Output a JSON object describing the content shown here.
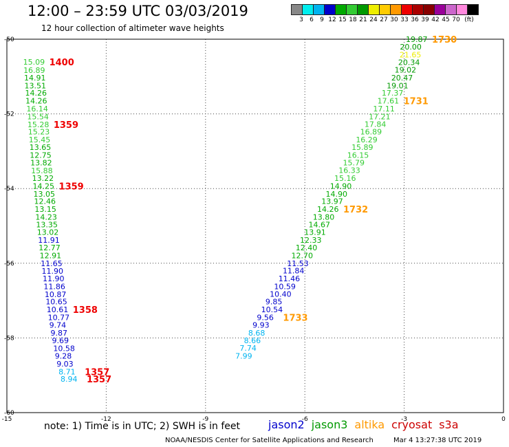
{
  "header": {
    "title": "12:00  – 23:59 UTC 03/03/2019",
    "subtitle": "12 hour collection of altimeter wave heights"
  },
  "legend": {
    "colors": [
      "#888888",
      "#00eeee",
      "#00b4f0",
      "#0000cc",
      "#00aa00",
      "#33cc33",
      "#009900",
      "#eeee00",
      "#ffcc00",
      "#ff9900",
      "#ee0000",
      "#aa0000",
      "#880000",
      "#990099",
      "#cc66cc",
      "#ff88dd",
      "#000000"
    ],
    "labels": [
      "3",
      "6",
      "9",
      "12",
      "15",
      "18",
      "21",
      "24",
      "27",
      "30",
      "33",
      "36",
      "39",
      "42",
      "45",
      "70"
    ],
    "unit": "(ft)"
  },
  "note": "note:  1) Time is in UTC; 2) SWH is in feet",
  "satellites": [
    {
      "name": "jason2",
      "color": "#0000cc"
    },
    {
      "name": "jason3",
      "color": "#009900"
    },
    {
      "name": "altika",
      "color": "#ff9900"
    },
    {
      "name": "cryosat",
      "color": "#cc0000"
    },
    {
      "name": "s3a",
      "color": "#cc0000"
    }
  ],
  "footer": {
    "agency": "NOAA/NESDIS Center for Satellite Applications and Research",
    "timestamp": "Mar  4 13:27:38 UTC 2019"
  },
  "chart_data": {
    "type": "scatter",
    "title": "12:00  – 23:59 UTC 03/03/2019",
    "xlim": [
      -15,
      0
    ],
    "ylim": [
      -60,
      -50
    ],
    "xticks": [
      -15,
      -12,
      -9,
      -6,
      -3,
      0
    ],
    "yticks": [
      -50,
      -52,
      -54,
      -56,
      -58,
      -60
    ],
    "grid": true,
    "tracks": [
      {
        "points": [
          {
            "x": -14.51,
            "y": -50.61,
            "v": "15.09"
          },
          {
            "x": -14.5,
            "y": -50.83,
            "v": "16.89"
          },
          {
            "x": -14.48,
            "y": -51.03,
            "v": "14.91"
          },
          {
            "x": -14.47,
            "y": -51.24,
            "v": "13.51"
          },
          {
            "x": -14.45,
            "y": -51.44,
            "v": "14.26"
          },
          {
            "x": -14.44,
            "y": -51.65,
            "v": "14.26"
          },
          {
            "x": -14.41,
            "y": -51.86,
            "v": "16.14"
          },
          {
            "x": -14.39,
            "y": -52.07,
            "v": "15.54"
          },
          {
            "x": -14.38,
            "y": -52.28,
            "v": "15.28"
          },
          {
            "x": -14.36,
            "y": -52.48,
            "v": "15.23"
          },
          {
            "x": -14.34,
            "y": -52.69,
            "v": "15.45"
          },
          {
            "x": -14.32,
            "y": -52.89,
            "v": "13.65"
          },
          {
            "x": -14.31,
            "y": -53.1,
            "v": "12.75"
          },
          {
            "x": -14.29,
            "y": -53.31,
            "v": "13.82"
          },
          {
            "x": -14.27,
            "y": -53.52,
            "v": "15.88"
          },
          {
            "x": -14.24,
            "y": -53.72,
            "v": "13.22"
          },
          {
            "x": -14.22,
            "y": -53.93,
            "v": "14.25"
          },
          {
            "x": -14.2,
            "y": -54.14,
            "v": "13.05"
          },
          {
            "x": -14.18,
            "y": -54.34,
            "v": "12.46"
          },
          {
            "x": -14.16,
            "y": -54.55,
            "v": "13.15"
          },
          {
            "x": -14.14,
            "y": -54.76,
            "v": "14.23"
          },
          {
            "x": -14.12,
            "y": -54.96,
            "v": "13.35"
          },
          {
            "x": -14.09,
            "y": -55.17,
            "v": "13.02"
          },
          {
            "x": -14.06,
            "y": -55.38,
            "v": "11.91"
          },
          {
            "x": -14.04,
            "y": -55.58,
            "v": "12.77"
          },
          {
            "x": -14.01,
            "y": -55.79,
            "v": "12.91"
          },
          {
            "x": -13.98,
            "y": -56.0,
            "v": "11.65"
          },
          {
            "x": -13.95,
            "y": -56.21,
            "v": "11.90"
          },
          {
            "x": -13.92,
            "y": -56.41,
            "v": "11.90"
          },
          {
            "x": -13.89,
            "y": -56.62,
            "v": "11.86"
          },
          {
            "x": -13.86,
            "y": -56.83,
            "v": "10.87"
          },
          {
            "x": -13.83,
            "y": -57.03,
            "v": "10.65"
          },
          {
            "x": -13.8,
            "y": -57.24,
            "v": "10.61"
          },
          {
            "x": -13.76,
            "y": -57.45,
            "v": "10.77"
          },
          {
            "x": -13.72,
            "y": -57.65,
            "v": "9.74"
          },
          {
            "x": -13.68,
            "y": -57.86,
            "v": "9.87"
          },
          {
            "x": -13.64,
            "y": -58.07,
            "v": "9.69"
          },
          {
            "x": -13.6,
            "y": -58.28,
            "v": "10.58"
          },
          {
            "x": -13.55,
            "y": -58.48,
            "v": "9.28"
          },
          {
            "x": -13.5,
            "y": -58.69,
            "v": "9.03"
          },
          {
            "x": -13.44,
            "y": -58.9,
            "v": "8.71"
          },
          {
            "x": -13.38,
            "y": -59.1,
            "v": "8.94"
          }
        ],
        "times": [
          {
            "label": "1400",
            "y": -50.61
          },
          {
            "label": "1359",
            "y": -52.28
          },
          {
            "label": "1359",
            "y": -53.93
          },
          {
            "label": "1358",
            "y": -57.24
          },
          {
            "label": "1357",
            "y": -58.9
          },
          {
            "label": "1357",
            "y": -59.1
          }
        ]
      },
      {
        "points": [
          {
            "x": -2.95,
            "y": -50.0,
            "v": "19.87"
          },
          {
            "x": -3.13,
            "y": -50.2,
            "v": "20.00"
          },
          {
            "x": -3.14,
            "y": -50.41,
            "v": "21.65"
          },
          {
            "x": -3.18,
            "y": -50.62,
            "v": "20.34"
          },
          {
            "x": -3.29,
            "y": -50.82,
            "v": "19.02"
          },
          {
            "x": -3.39,
            "y": -51.03,
            "v": "20.47"
          },
          {
            "x": -3.53,
            "y": -51.24,
            "v": "19.01"
          },
          {
            "x": -3.68,
            "y": -51.44,
            "v": "17.37"
          },
          {
            "x": -3.81,
            "y": -51.65,
            "v": "17.61"
          },
          {
            "x": -3.94,
            "y": -51.86,
            "v": "17.11"
          },
          {
            "x": -4.07,
            "y": -52.07,
            "v": "17.21"
          },
          {
            "x": -4.2,
            "y": -52.27,
            "v": "17.84"
          },
          {
            "x": -4.33,
            "y": -52.48,
            "v": "16.89"
          },
          {
            "x": -4.46,
            "y": -52.69,
            "v": "16.29"
          },
          {
            "x": -4.59,
            "y": -52.89,
            "v": "15.89"
          },
          {
            "x": -4.72,
            "y": -53.1,
            "v": "16.15"
          },
          {
            "x": -4.85,
            "y": -53.31,
            "v": "15.79"
          },
          {
            "x": -4.98,
            "y": -53.51,
            "v": "16.33"
          },
          {
            "x": -5.11,
            "y": -53.72,
            "v": "15.16"
          },
          {
            "x": -5.24,
            "y": -53.93,
            "v": "14.90"
          },
          {
            "x": -5.37,
            "y": -54.14,
            "v": "14.90"
          },
          {
            "x": -5.5,
            "y": -54.34,
            "v": "13.97"
          },
          {
            "x": -5.63,
            "y": -54.55,
            "v": "14.26"
          },
          {
            "x": -5.76,
            "y": -54.76,
            "v": "13.80"
          },
          {
            "x": -5.89,
            "y": -54.96,
            "v": "14.67"
          },
          {
            "x": -6.02,
            "y": -55.17,
            "v": "13.91"
          },
          {
            "x": -6.15,
            "y": -55.38,
            "v": "12.33"
          },
          {
            "x": -6.28,
            "y": -55.58,
            "v": "12.40"
          },
          {
            "x": -6.41,
            "y": -55.79,
            "v": "12.70"
          },
          {
            "x": -6.54,
            "y": -56.0,
            "v": "11.53"
          },
          {
            "x": -6.67,
            "y": -56.2,
            "v": "11.84"
          },
          {
            "x": -6.8,
            "y": -56.41,
            "v": "11.46"
          },
          {
            "x": -6.93,
            "y": -56.62,
            "v": "10.59"
          },
          {
            "x": -7.06,
            "y": -56.82,
            "v": "10.40"
          },
          {
            "x": -7.19,
            "y": -57.03,
            "v": "9.85"
          },
          {
            "x": -7.32,
            "y": -57.24,
            "v": "10.54"
          },
          {
            "x": -7.45,
            "y": -57.45,
            "v": "9.56"
          },
          {
            "x": -7.58,
            "y": -57.65,
            "v": "9.93"
          },
          {
            "x": -7.71,
            "y": -57.86,
            "v": "8.68"
          },
          {
            "x": -7.84,
            "y": -58.07,
            "v": "8.66"
          },
          {
            "x": -7.97,
            "y": -58.27,
            "v": "7.74"
          },
          {
            "x": -8.1,
            "y": -58.48,
            "v": "7.99"
          }
        ],
        "times": [
          {
            "label": "1730",
            "y": -50.0
          },
          {
            "label": "1731",
            "y": -51.65
          },
          {
            "label": "1732",
            "y": -54.55
          },
          {
            "label": "1733",
            "y": -57.45
          }
        ]
      }
    ]
  }
}
